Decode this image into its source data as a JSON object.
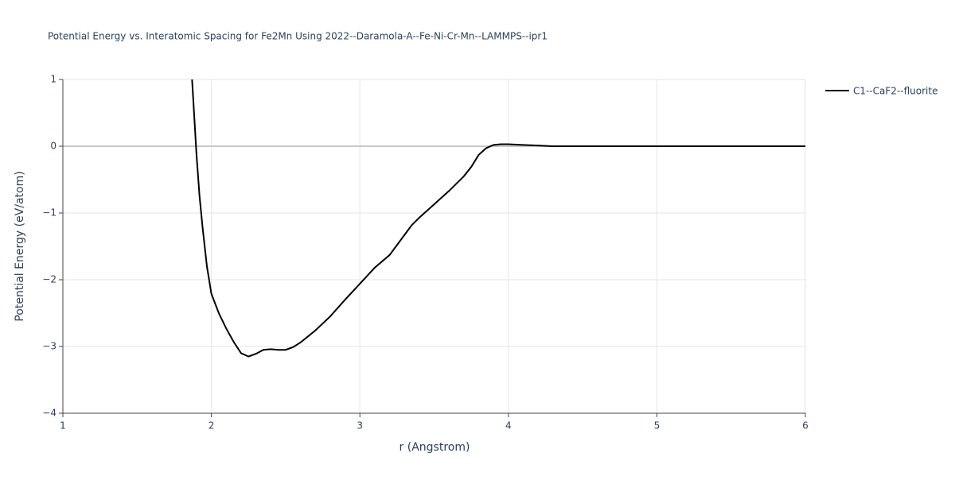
{
  "chart_data": {
    "type": "line",
    "title": "Potential Energy vs. Interatomic Spacing for Fe2Mn Using 2022--Daramola-A--Fe-Ni-Cr-Mn--LAMMPS--ipr1",
    "x_label": "r (Angstrom)",
    "y_label": "Potential Energy (eV/atom)",
    "x": [
      1.87,
      1.9,
      1.92,
      1.94,
      1.97,
      2.0,
      2.05,
      2.1,
      2.15,
      2.2,
      2.25,
      2.3,
      2.35,
      2.4,
      2.45,
      2.5,
      2.55,
      2.6,
      2.7,
      2.8,
      2.9,
      3.0,
      3.1,
      3.2,
      3.3,
      3.35,
      3.4,
      3.5,
      3.6,
      3.7,
      3.75,
      3.8,
      3.85,
      3.9,
      3.95,
      4.0,
      4.1,
      4.2,
      4.3,
      5.0,
      6.0
    ],
    "series": [
      {
        "name": "C1--CaF2--fluorite",
        "color": "#000000",
        "values": [
          1.0,
          -0.13,
          -0.74,
          -1.2,
          -1.8,
          -2.21,
          -2.5,
          -2.73,
          -2.93,
          -3.1,
          -3.15,
          -3.11,
          -3.05,
          -3.04,
          -3.05,
          -3.05,
          -3.01,
          -2.94,
          -2.76,
          -2.55,
          -2.3,
          -2.06,
          -1.82,
          -1.63,
          -1.33,
          -1.18,
          -1.07,
          -0.87,
          -0.67,
          -0.45,
          -0.31,
          -0.13,
          -0.03,
          0.02,
          0.03,
          0.03,
          0.02,
          0.01,
          0.0,
          0.0,
          0.0
        ]
      }
    ],
    "xlim": [
      1,
      6
    ],
    "xticks": [
      1,
      2,
      3,
      4,
      5,
      6
    ],
    "ylim": [
      -4,
      1
    ],
    "yticks": [
      {
        "value": -4,
        "label": "−4"
      },
      {
        "value": -3,
        "label": "−3"
      },
      {
        "value": -2,
        "label": "−2"
      },
      {
        "value": -1,
        "label": "−1"
      },
      0,
      1
    ],
    "grid": true,
    "legend_position": "top-right"
  }
}
